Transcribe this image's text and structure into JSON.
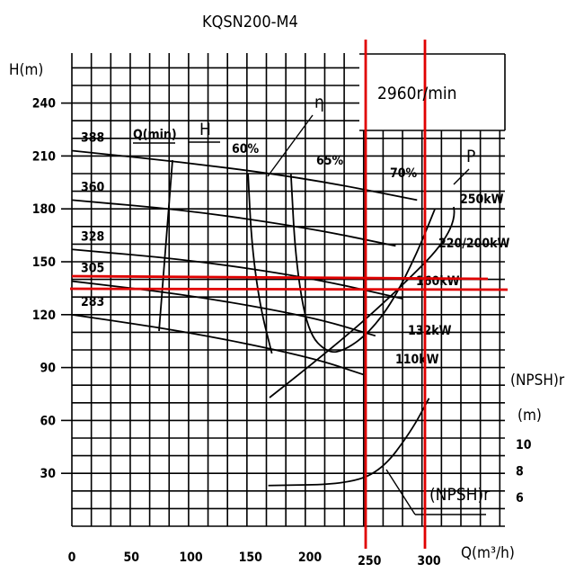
{
  "chart_data": {
    "type": "line",
    "title": "KQSN200-M4",
    "speed_label": "2960r/min",
    "ylabel": "H(m)",
    "xlabel": "Q(m³/h)",
    "npsh_axis_label_1": "(NPSH)r",
    "npsh_axis_label_2": "(m)",
    "xlim": [
      0,
      340
    ],
    "ylim": [
      0,
      255
    ],
    "x_ticks": [
      "0",
      "50",
      "100",
      "150",
      "200",
      "250",
      "300"
    ],
    "x_tick_values": [
      0,
      50,
      100,
      150,
      200,
      250,
      300
    ],
    "y_ticks": [
      "30",
      "60",
      "90",
      "120",
      "150",
      "180",
      "210",
      "240"
    ],
    "y_tick_values": [
      30,
      60,
      90,
      120,
      150,
      180,
      210,
      240
    ],
    "npsh_ticks": [
      "10",
      "8",
      "6"
    ],
    "npsh_tick_values": [
      10,
      8,
      6
    ],
    "grid": true,
    "head_curves": [
      {
        "name": "388",
        "points": [
          [
            0,
            213
          ],
          [
            100,
            206
          ],
          [
            200,
            197
          ],
          [
            290,
            185
          ]
        ]
      },
      {
        "name": "360",
        "points": [
          [
            0,
            185
          ],
          [
            100,
            179
          ],
          [
            200,
            169
          ],
          [
            272,
            159
          ]
        ]
      },
      {
        "name": "328",
        "points": [
          [
            0,
            157
          ],
          [
            100,
            151
          ],
          [
            200,
            141
          ],
          [
            278,
            129
          ]
        ]
      },
      {
        "name": "305",
        "points": [
          [
            0,
            139
          ],
          [
            100,
            131
          ],
          [
            200,
            119
          ],
          [
            255,
            108
          ]
        ]
      },
      {
        "name": "283",
        "points": [
          [
            0,
            120
          ],
          [
            100,
            110
          ],
          [
            200,
            96
          ],
          [
            245,
            86
          ]
        ]
      }
    ],
    "efficiency_curves": [
      {
        "name": "60%",
        "points": [
          [
            148,
            200
          ],
          [
            151,
            160
          ],
          [
            158,
            125
          ],
          [
            168,
            98
          ]
        ]
      },
      {
        "name": "65%",
        "points": [
          [
            184,
            200
          ],
          [
            188,
            150
          ],
          [
            198,
            110
          ],
          [
            215,
            98
          ],
          [
            230,
            100
          ],
          [
            250,
            110
          ],
          [
            270,
            128
          ],
          [
            290,
            155
          ],
          [
            305,
            180
          ]
        ]
      }
    ],
    "eff_labels": [
      "60%",
      "65%",
      "70%"
    ],
    "power_labels": [
      "250kW",
      "220/200kW",
      "160kW",
      "132kW",
      "110kW"
    ],
    "npsh_curve": {
      "points": [
        [
          165,
          6.9
        ],
        [
          230,
          7.0
        ],
        [
          260,
          8.0
        ],
        [
          285,
          11.0
        ],
        [
          300,
          13.5
        ]
      ]
    },
    "curve_tags": {
      "H": "H",
      "eta": "η",
      "P": "P",
      "npsh": "(NPSH)r",
      "q_min": "Q(min)"
    },
    "reference_lines": {
      "vertical_q": [
        248,
        298
      ],
      "horizontal_h": [
        143,
        135
      ],
      "color": "#e00000"
    }
  }
}
